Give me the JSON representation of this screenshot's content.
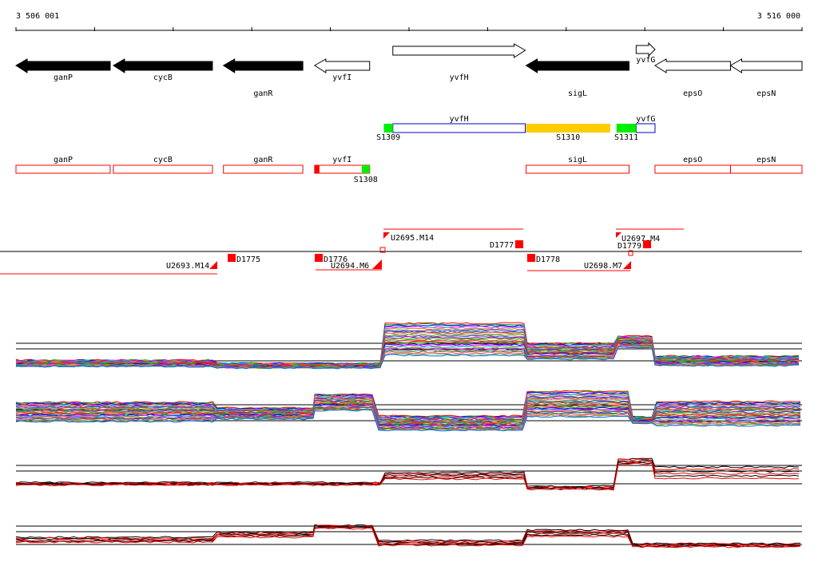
{
  "ruler": {
    "start_label": "3 506 001",
    "end_label": "3 516 000",
    "start": 3506001,
    "end": 3516000
  },
  "genes_track": [
    {
      "name": "ganP",
      "strand": "-",
      "style": "filled",
      "from": 3506001,
      "to": 3507200,
      "label_row": "upper"
    },
    {
      "name": "cycB",
      "strand": "-",
      "style": "filled",
      "from": 3507240,
      "to": 3508500,
      "label_row": "upper"
    },
    {
      "name": "ganR",
      "strand": "-",
      "style": "filled",
      "from": 3508640,
      "to": 3509650,
      "label_row": "lower"
    },
    {
      "name": "yvfI",
      "strand": "-",
      "style": "outline",
      "from": 3509800,
      "to": 3510500,
      "label_row": "upper"
    },
    {
      "name": "yvfH",
      "strand": "+",
      "style": "outline",
      "from": 3510795,
      "to": 3512480,
      "label_row": "upper"
    },
    {
      "name": "sigL",
      "strand": "-",
      "style": "filled",
      "from": 3512490,
      "to": 3513800,
      "label_row": "lower"
    },
    {
      "name": "yvfG",
      "strand": "+",
      "style": "outline",
      "from": 3513890,
      "to": 3514130,
      "label_row": "mid"
    },
    {
      "name": "epsO",
      "strand": "-",
      "style": "outline",
      "from": 3514130,
      "to": 3515090,
      "label_row": "lower"
    },
    {
      "name": "epsN",
      "strand": "-",
      "style": "outline",
      "from": 3515090,
      "to": 3516000,
      "label_row": "lower"
    }
  ],
  "segment_track": {
    "boxes": [
      {
        "name": "yvfH",
        "from": 3510795,
        "to": 3512480
      },
      {
        "name": "yvfG",
        "from": 3513890,
        "to": 3514130
      }
    ],
    "features": [
      {
        "name": "S1309",
        "color": "#00ee00",
        "from": 3510680,
        "to": 3510795
      },
      {
        "name": "S1310",
        "color": "#ffcc00",
        "from": 3512490,
        "to": 3513560
      },
      {
        "name": "S1311",
        "color": "#00ee00",
        "from": 3513640,
        "to": 3513890
      }
    ]
  },
  "red_track": {
    "boxes": [
      {
        "name": "ganP",
        "from": 3506001,
        "to": 3507200
      },
      {
        "name": "cycB",
        "from": 3507240,
        "to": 3508500
      },
      {
        "name": "ganR",
        "from": 3508640,
        "to": 3509650
      },
      {
        "name": "yvfI",
        "from": 3509800,
        "to": 3510500
      },
      {
        "name": "sigL",
        "from": 3512490,
        "to": 3513800
      },
      {
        "name": "epsO",
        "from": 3514130,
        "to": 3515090
      },
      {
        "name": "epsN",
        "from": 3515090,
        "to": 3516000
      }
    ],
    "features": [
      {
        "name": "S1308",
        "color": "#00ee00",
        "from": 3510400,
        "to": 3510500
      }
    ]
  },
  "transcripts": {
    "labels": [
      "U2693.M14",
      "D1775",
      "D1776",
      "U2695.M14",
      "U2694.M6",
      "D1777",
      "D1778",
      "U2698.M7",
      "U2697.M4",
      "D1779"
    ]
  },
  "colors": {
    "filled_gene": "#000000",
    "red": "#ff0000",
    "blue": "#0000cc",
    "green": "#00ee00",
    "yellow": "#ffcc00"
  }
}
